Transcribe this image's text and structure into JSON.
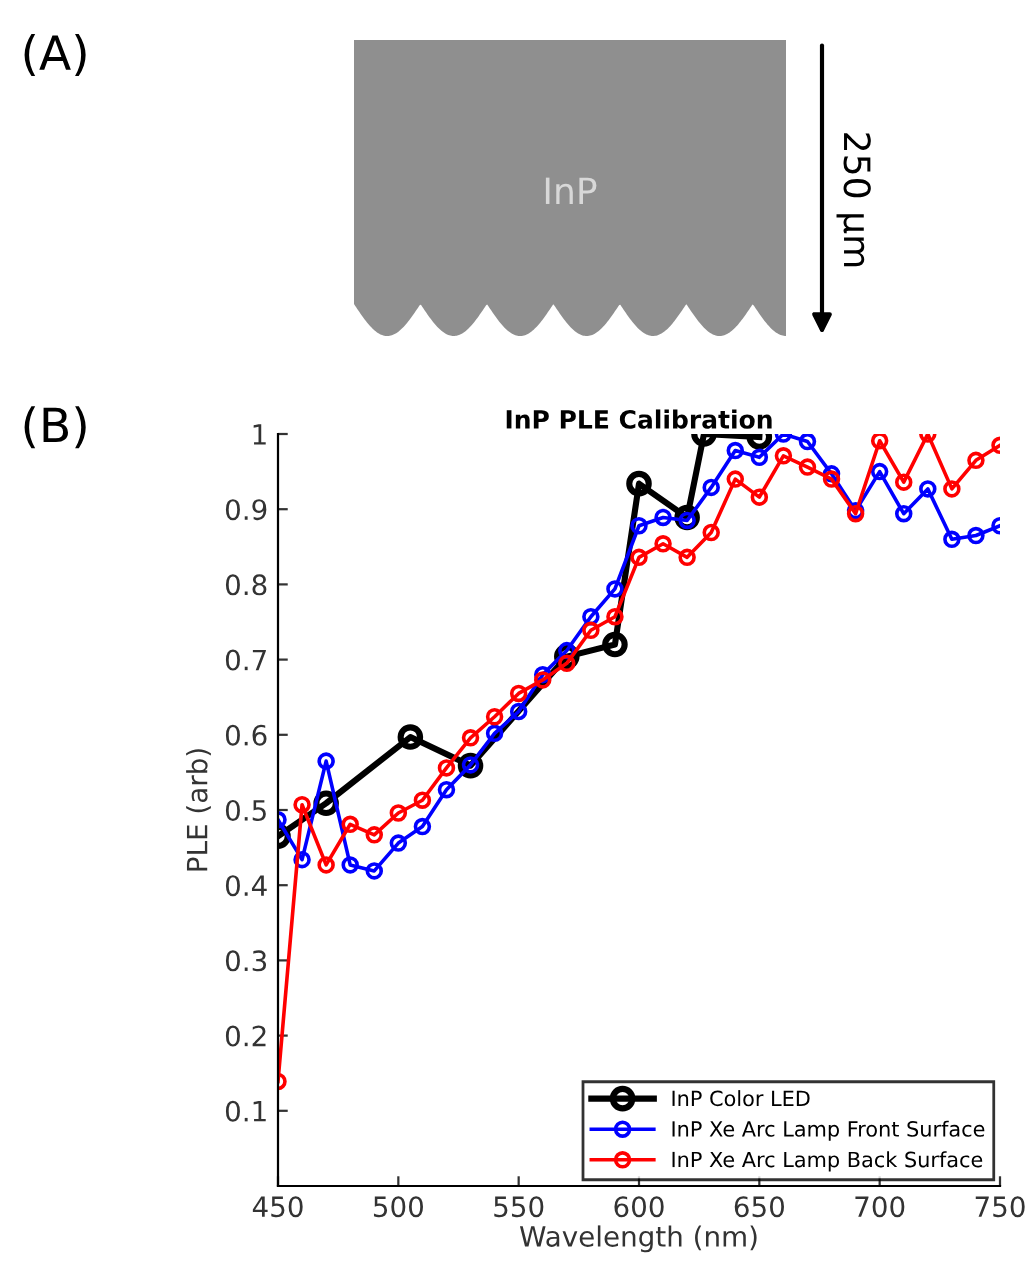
{
  "chart_data": {
    "type": "line",
    "title": "InP PLE Calibration",
    "xlabel": "Wavelength (nm)",
    "ylabel": "PLE (arb)",
    "annotations": [
      "(A)",
      "(B)",
      "InP",
      "250 µm"
    ],
    "xlim": [
      450,
      750
    ],
    "xticks": [
      450,
      500,
      550,
      600,
      650,
      700,
      750
    ],
    "ylim": [
      0,
      1
    ],
    "yticks": [
      0.1,
      0.2,
      0.3,
      0.4,
      0.5,
      0.6,
      0.7,
      0.8,
      0.9,
      1
    ],
    "grid": false,
    "legend": "bottom right",
    "marker": "circle",
    "line_style": "solid",
    "series": [
      {
        "name": "InP Color LED",
        "color": "#000000",
        "x": [
          450,
          470,
          505,
          530,
          570,
          590,
          600,
          620,
          627,
          650
        ],
        "values": [
          0.465,
          0.509,
          0.597,
          0.559,
          0.704,
          0.72,
          0.934,
          0.889,
          1.0,
          0.996
        ]
      },
      {
        "name": "InP Xe Arc Lamp Front Surface",
        "color": "#0000ff",
        "x": [
          450,
          460,
          470,
          480,
          490,
          500,
          510,
          520,
          530,
          540,
          550,
          560,
          570,
          580,
          590,
          600,
          610,
          620,
          630,
          640,
          650,
          660,
          670,
          680,
          690,
          700,
          710,
          720,
          730,
          740,
          750
        ],
        "values": [
          0.487,
          0.434,
          0.565,
          0.427,
          0.419,
          0.456,
          0.478,
          0.527,
          0.56,
          0.602,
          0.631,
          0.68,
          0.712,
          0.757,
          0.794,
          0.878,
          0.889,
          0.885,
          0.929,
          0.978,
          0.969,
          1.0,
          0.99,
          0.947,
          0.898,
          0.95,
          0.894,
          0.927,
          0.86,
          0.865,
          0.878
        ]
      },
      {
        "name": "InP Xe Arc Lamp Back Surface",
        "color": "#ff0000",
        "x": [
          450,
          460,
          470,
          480,
          490,
          500,
          510,
          520,
          530,
          540,
          550,
          560,
          570,
          580,
          590,
          600,
          610,
          620,
          630,
          640,
          650,
          660,
          670,
          680,
          690,
          700,
          710,
          720,
          730,
          740,
          750
        ],
        "values": [
          0.139,
          0.507,
          0.427,
          0.481,
          0.467,
          0.496,
          0.513,
          0.556,
          0.596,
          0.624,
          0.655,
          0.673,
          0.695,
          0.739,
          0.757,
          0.836,
          0.854,
          0.836,
          0.869,
          0.94,
          0.916,
          0.971,
          0.956,
          0.94,
          0.894,
          0.991,
          0.936,
          1.0,
          0.927,
          0.965,
          0.985
        ]
      }
    ]
  }
}
